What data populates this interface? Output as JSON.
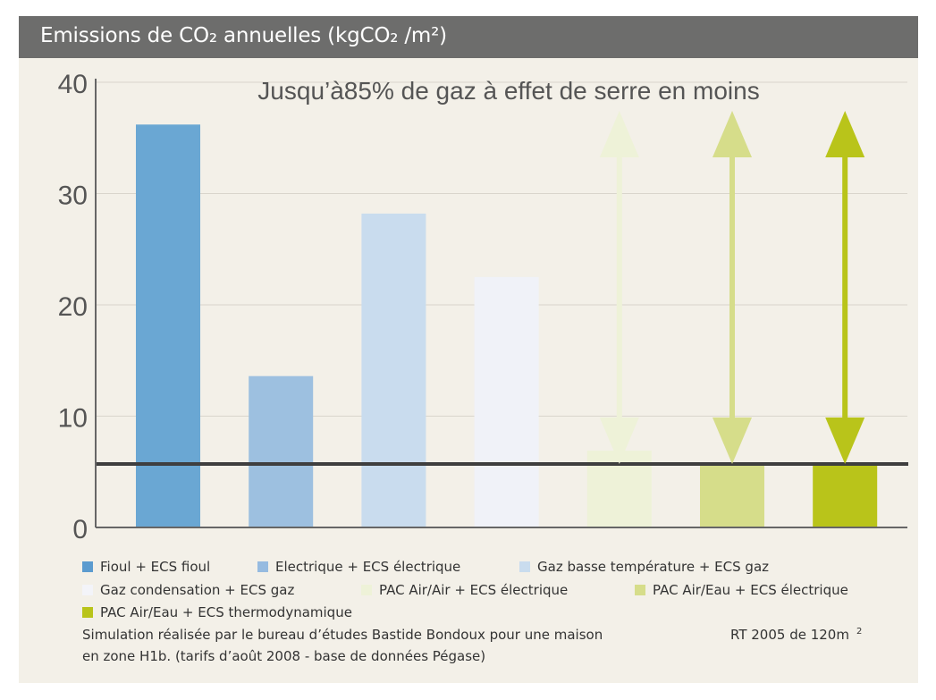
{
  "header": {
    "title": "Emissions de CO₂ annuelles (kgCO₂ /m²)"
  },
  "chart_data": {
    "type": "bar",
    "title": "Jusqu’à85% de gaz à effet de serre en moins",
    "ylim": [
      0,
      40
    ],
    "y_ticks": [
      "0",
      "10",
      "20",
      "30",
      "40"
    ],
    "grid": true,
    "reference_line": 5.7,
    "categories": [
      "Fioul + ECS fioul",
      "Electrique + ECS électrique",
      "Gaz basse température + ECS gaz",
      "Gaz condensation + ECS gaz",
      "PAC Air/Air + ECS électrique",
      "PAC Air/Eau + ECS électrique",
      "PAC Air/Eau + ECS thermodynamique"
    ],
    "values": [
      36.2,
      13.6,
      28.2,
      22.5,
      6.9,
      5.7,
      5.7
    ],
    "colors": [
      "#6aa7d3",
      "#9dc0e0",
      "#c9dcee",
      "#f0f2f8",
      "#eef2d8",
      "#d6dd8a",
      "#b9c41a"
    ],
    "arrows": [
      {
        "category": "PAC Air/Air + ECS électrique",
        "color": "#eef2d8"
      },
      {
        "category": "PAC Air/Eau + ECS électrique",
        "color": "#d6dd8a"
      },
      {
        "category": "PAC Air/Eau + ECS thermodynamique",
        "color": "#b9c41a"
      }
    ],
    "legend_position": "bottom"
  },
  "legend": [
    {
      "label": "Fioul + ECS fioul",
      "color": "#5b9bcf"
    },
    {
      "label": "Electrique + ECS électrique",
      "color": "#96bbe0"
    },
    {
      "label": "Gaz basse température + ECS gaz",
      "color": "#c9dcee"
    },
    {
      "label": "Gaz condensation + ECS gaz",
      "color": "#f3f4f9"
    },
    {
      "label": "PAC Air/Air + ECS électrique",
      "color": "#eef2d8"
    },
    {
      "label": "PAC Air/Eau + ECS électrique",
      "color": "#d6dd8a"
    },
    {
      "label": "PAC Air/Eau + ECS thermodynamique",
      "color": "#b9c41a"
    }
  ],
  "notes": {
    "line1": "Simulation réalisée par le bureau d’études Bastide Bondoux pour une maison",
    "line1_right": "RT 2005 de 120m",
    "line1_right_sup": "2",
    "line2": "en zone H1b. (tarifs d’août 2008 - base de données Pégase)"
  }
}
